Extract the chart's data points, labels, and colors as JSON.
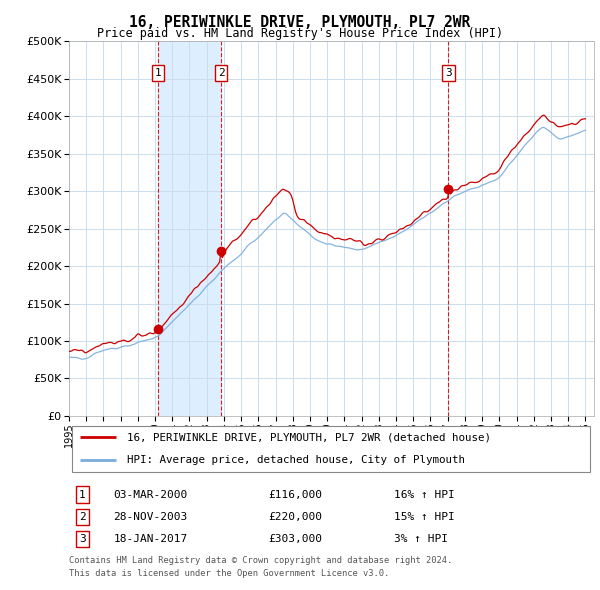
{
  "title": "16, PERIWINKLE DRIVE, PLYMOUTH, PL7 2WR",
  "subtitle": "Price paid vs. HM Land Registry's House Price Index (HPI)",
  "legend_line1": "16, PERIWINKLE DRIVE, PLYMOUTH, PL7 2WR (detached house)",
  "legend_line2": "HPI: Average price, detached house, City of Plymouth",
  "footer1": "Contains HM Land Registry data © Crown copyright and database right 2024.",
  "footer2": "This data is licensed under the Open Government Licence v3.0.",
  "sale_prices": [
    116000,
    220000,
    303000
  ],
  "sale_labels": [
    "1",
    "2",
    "3"
  ],
  "sale_pct": [
    "16% ↑ HPI",
    "15% ↑ HPI",
    "3% ↑ HPI"
  ],
  "sale_dates_str": [
    "03-MAR-2000",
    "28-NOV-2003",
    "18-JAN-2017"
  ],
  "table_prices": [
    "£116,000",
    "£220,000",
    "£303,000"
  ],
  "red_color": "#cc0000",
  "blue_color": "#7aacdc",
  "shade_color": "#ddeeff",
  "background_chart": "#ddeeff",
  "ylim": [
    0,
    500000
  ],
  "yticks": [
    0,
    50000,
    100000,
    150000,
    200000,
    250000,
    300000,
    350000,
    400000,
    450000,
    500000
  ]
}
